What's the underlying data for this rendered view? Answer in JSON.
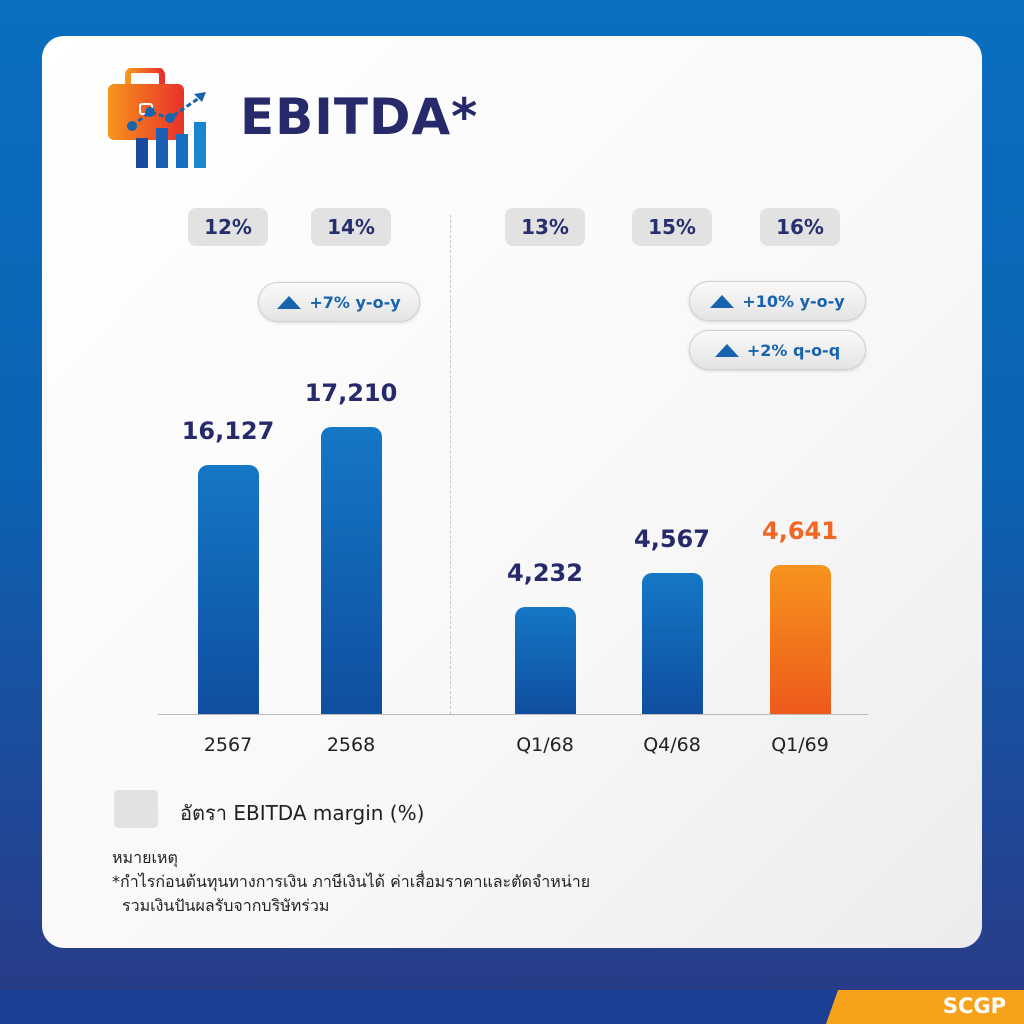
{
  "title": "EBITDA*",
  "legend": {
    "label": "อัตรา EBITDA margin (%)"
  },
  "notes": {
    "heading": "หมายเหตุ",
    "line1": "*กำไรก่อนต้นทุนทางการเงิน ภาษีเงินได้ ค่าเสื่อมราคาและตัดจำหน่าย",
    "line2": "รวมเงินปันผลรับจากบริษัทร่วม"
  },
  "brand": "SCGP",
  "growth": {
    "annual_yoy": "+7% y-o-y",
    "quarter_yoy": "+10% y-o-y",
    "quarter_qoq": "+2% q-o-q"
  },
  "colors": {
    "bar": "#1577c6",
    "highlight": "#f26522",
    "text": "#262a6b",
    "margin_badge": "#e2e2e2"
  },
  "icons": [
    "briefcase-growth-icon",
    "triangle-up-icon"
  ],
  "chart_data": {
    "type": "bar",
    "groups": [
      "annual",
      "quarterly"
    ],
    "categories": [
      "2567",
      "2568",
      "Q1/68",
      "Q4/68",
      "Q1/69"
    ],
    "values": [
      16127,
      17210,
      4232,
      4567,
      4641
    ],
    "value_labels": [
      "16,127",
      "17,210",
      "4,232",
      "4,567",
      "4,641"
    ],
    "margins": [
      "12%",
      "14%",
      "13%",
      "15%",
      "16%"
    ],
    "highlight": "Q1/69",
    "grid": false
  }
}
